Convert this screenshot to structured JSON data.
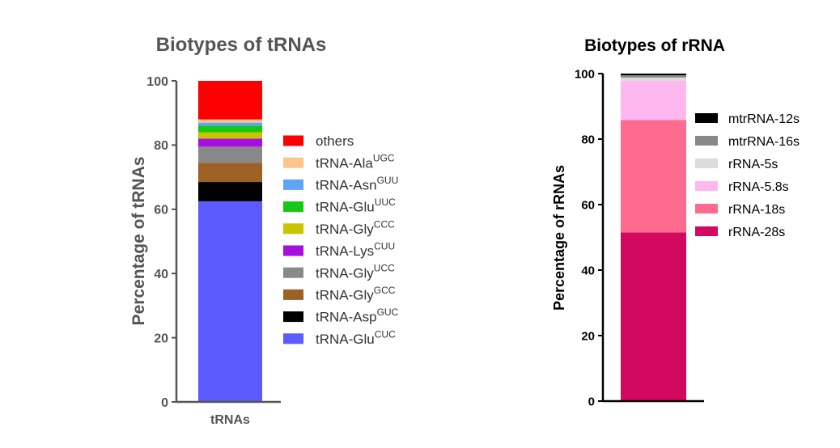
{
  "chart_data": [
    {
      "type": "bar",
      "stacked": true,
      "title": "Biotypes of tRNAs",
      "xlabel": "",
      "ylabel": "Percentage of tRNAs",
      "categories": [
        "tRNAs"
      ],
      "ylim": [
        0,
        100
      ],
      "yticks": [
        0,
        20,
        40,
        60,
        80,
        100
      ],
      "grid": false,
      "legend_position": "right",
      "series": [
        {
          "name": "tRNA-Glu",
          "superscript": "CUC",
          "values": [
            62.5
          ],
          "color": "#5b5bff"
        },
        {
          "name": "tRNA-Asp",
          "superscript": "GUC",
          "values": [
            6.0
          ],
          "color": "#000000"
        },
        {
          "name": "tRNA-Gly",
          "superscript": "GCC",
          "values": [
            6.0
          ],
          "color": "#9c6125"
        },
        {
          "name": "tRNA-Gly",
          "superscript": "UCC",
          "values": [
            5.0
          ],
          "color": "#898989"
        },
        {
          "name": "tRNA-Lys",
          "superscript": "CUU",
          "values": [
            2.5
          ],
          "color": "#a60fe0"
        },
        {
          "name": "tRNA-Gly",
          "superscript": "CCC",
          "values": [
            2.0
          ],
          "color": "#c8c400"
        },
        {
          "name": "tRNA-Glu",
          "superscript": "UUC",
          "values": [
            2.0
          ],
          "color": "#14c814"
        },
        {
          "name": "tRNA-Asn",
          "superscript": "GUU",
          "values": [
            1.0
          ],
          "color": "#5ea6f5"
        },
        {
          "name": "tRNA-Ala",
          "superscript": "UGC",
          "values": [
            1.0
          ],
          "color": "#ffc48c"
        },
        {
          "name": "others",
          "superscript": "",
          "values": [
            12.0
          ],
          "color": "#ff0000"
        }
      ]
    },
    {
      "type": "bar",
      "stacked": true,
      "title": "Biotypes of rRNA",
      "xlabel": "",
      "ylabel": "Percentage of rRNAs",
      "categories": [
        ""
      ],
      "ylim": [
        0,
        100
      ],
      "yticks": [
        0,
        20,
        40,
        60,
        80,
        100
      ],
      "grid": false,
      "legend_position": "right",
      "series": [
        {
          "name": "rRNA-28s",
          "values": [
            51.5
          ],
          "color": "#d3095f"
        },
        {
          "name": "rRNA-18s",
          "values": [
            34.3
          ],
          "color": "#ff6b8f"
        },
        {
          "name": "rRNA-5.8s",
          "values": [
            12.0
          ],
          "color": "#ffb7ef"
        },
        {
          "name": "rRNA-5s",
          "values": [
            1.0
          ],
          "color": "#dcdcdc"
        },
        {
          "name": "mtrRNA-16s",
          "values": [
            0.7
          ],
          "color": "#888888"
        },
        {
          "name": "mtrRNA-12s",
          "values": [
            0.5
          ],
          "color": "#000000"
        }
      ]
    }
  ]
}
